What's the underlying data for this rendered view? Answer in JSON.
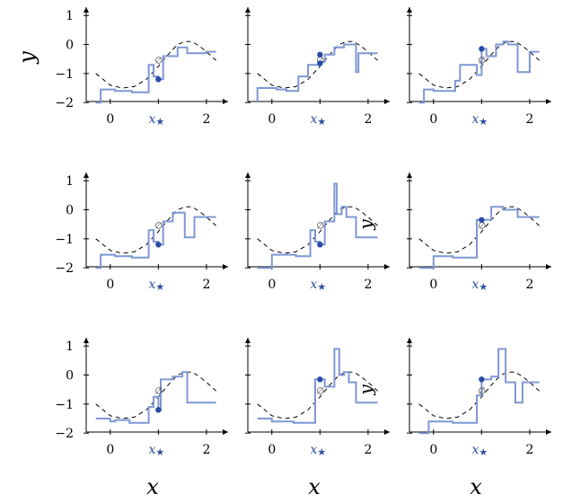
{
  "colors": {
    "step": "#7f97d4",
    "dot": "#2a4aa8",
    "curve": "#000000",
    "xstar": "#2e4ea0"
  },
  "labels": {
    "x": "x",
    "y": "y",
    "xstar": "x",
    "xstar_sub": "★",
    "emptyset": "∅"
  },
  "chart_data": [
    {
      "type": "line",
      "row": 0,
      "col": 0,
      "xlim": [
        -0.5,
        2.3
      ],
      "ylim": [
        -2.15,
        1.1
      ],
      "xticks": [
        "0",
        "2"
      ],
      "yticks": [
        "1",
        "0",
        "−1",
        "−2"
      ],
      "xstar": 1.0,
      "series": [
        {
          "style": "dashed",
          "x": [
            -0.3,
            0.0,
            0.25,
            0.5,
            0.75,
            1.0,
            1.2,
            1.4,
            1.55,
            1.7,
            1.85,
            2.0,
            2.2
          ],
          "y": [
            -1.0,
            -1.4,
            -1.5,
            -1.45,
            -1.2,
            -0.75,
            -0.35,
            0.0,
            0.1,
            0.1,
            -0.05,
            -0.25,
            -0.55
          ]
        },
        {
          "style": "step",
          "x": [
            -0.3,
            -0.2,
            -0.2,
            0.1,
            0.1,
            0.45,
            0.45,
            0.8,
            0.8,
            0.9,
            0.9,
            1.0,
            1.0,
            1.1,
            1.1,
            1.4,
            1.4,
            1.6,
            1.6,
            2.0,
            2.0,
            2.2
          ],
          "y": [
            -2.0,
            -2.0,
            -1.55,
            -1.55,
            -1.6,
            -1.6,
            -1.65,
            -1.65,
            -0.7,
            -0.7,
            -1.1,
            -1.1,
            -1.2,
            -1.2,
            -0.4,
            -0.4,
            -0.1,
            -0.1,
            -0.3,
            -0.3,
            -0.25,
            -0.25
          ]
        }
      ],
      "point": {
        "x": 1.0,
        "y": -1.2
      },
      "emptyset": {
        "x": 1.0,
        "y": -0.55
      }
    },
    {
      "type": "line",
      "row": 0,
      "col": 1,
      "xlim": [
        -0.5,
        2.3
      ],
      "ylim": [
        -2.15,
        1.1
      ],
      "xticks": [
        "0",
        "2"
      ],
      "yticks": [],
      "xstar": 1.0,
      "series": [
        {
          "style": "dashed",
          "x": [
            -0.3,
            0.0,
            0.25,
            0.5,
            0.75,
            1.0,
            1.2,
            1.4,
            1.55,
            1.7,
            1.85,
            2.0,
            2.2
          ],
          "y": [
            -1.0,
            -1.4,
            -1.5,
            -1.45,
            -1.2,
            -0.75,
            -0.35,
            0.0,
            0.1,
            0.1,
            -0.05,
            -0.25,
            -0.55
          ]
        },
        {
          "style": "step",
          "x": [
            -0.3,
            -0.3,
            0.1,
            0.1,
            0.3,
            0.3,
            0.55,
            0.55,
            0.75,
            0.75,
            1.0,
            1.0,
            1.1,
            1.1,
            1.3,
            1.3,
            1.5,
            1.5,
            1.75,
            1.75,
            1.8,
            1.8,
            2.2
          ],
          "y": [
            -2.0,
            -1.5,
            -1.5,
            -1.55,
            -1.55,
            -1.6,
            -1.6,
            -1.1,
            -1.1,
            -0.7,
            -0.7,
            -0.6,
            -0.6,
            -0.35,
            -0.35,
            -0.1,
            -0.1,
            0.0,
            0.0,
            -0.95,
            -0.95,
            -0.3,
            -0.3
          ]
        }
      ],
      "point": {
        "x": 1.0,
        "y": -0.35
      },
      "point2": {
        "x": 1.0,
        "y": -0.65
      },
      "emptyset": {
        "x": 1.0,
        "y": -0.55
      }
    },
    {
      "type": "line",
      "row": 0,
      "col": 2,
      "xlim": [
        -0.5,
        2.3
      ],
      "ylim": [
        -2.15,
        1.1
      ],
      "xticks": [
        "0",
        "2"
      ],
      "yticks": [],
      "xstar": 1.0,
      "series": [
        {
          "style": "dashed",
          "x": [
            -0.3,
            0.0,
            0.25,
            0.5,
            0.75,
            1.0,
            1.2,
            1.4,
            1.55,
            1.7,
            1.85,
            2.0,
            2.2
          ],
          "y": [
            -1.0,
            -1.4,
            -1.5,
            -1.45,
            -1.2,
            -0.75,
            -0.35,
            0.0,
            0.1,
            0.1,
            -0.05,
            -0.25,
            -0.55
          ]
        },
        {
          "style": "step",
          "x": [
            -0.3,
            -0.2,
            -0.2,
            0.0,
            0.0,
            0.45,
            0.45,
            0.55,
            0.55,
            0.9,
            0.9,
            1.0,
            1.0,
            1.1,
            1.1,
            1.3,
            1.3,
            1.45,
            1.45,
            1.55,
            1.55,
            1.75,
            1.75,
            2.0,
            2.0,
            2.2
          ],
          "y": [
            -2.0,
            -2.0,
            -1.55,
            -1.55,
            -1.6,
            -1.6,
            -1.25,
            -1.25,
            -0.7,
            -0.7,
            -1.05,
            -1.05,
            -0.15,
            -0.15,
            -0.4,
            -0.4,
            0.0,
            0.0,
            0.1,
            0.1,
            0.0,
            0.0,
            -0.95,
            -0.95,
            -0.25,
            -0.25
          ]
        }
      ],
      "point": {
        "x": 1.0,
        "y": -0.15
      },
      "emptyset": {
        "x": 1.0,
        "y": -0.55
      }
    },
    {
      "type": "line",
      "row": 1,
      "col": 0,
      "xlim": [
        -0.5,
        2.3
      ],
      "ylim": [
        -2.15,
        1.1
      ],
      "xticks": [
        "0",
        "2"
      ],
      "yticks": [
        "1",
        "0",
        "−1",
        "−2"
      ],
      "xstar": 1.0,
      "series": [
        {
          "style": "dashed",
          "x": [
            -0.3,
            0.0,
            0.25,
            0.5,
            0.75,
            1.0,
            1.2,
            1.4,
            1.55,
            1.7,
            1.85,
            2.0,
            2.2
          ],
          "y": [
            -1.0,
            -1.4,
            -1.5,
            -1.45,
            -1.2,
            -0.75,
            -0.35,
            0.0,
            0.1,
            0.1,
            -0.05,
            -0.25,
            -0.55
          ]
        },
        {
          "style": "step",
          "x": [
            -0.3,
            -0.2,
            -0.2,
            0.1,
            0.1,
            0.45,
            0.45,
            0.8,
            0.8,
            0.9,
            0.9,
            1.0,
            1.0,
            1.1,
            1.1,
            1.3,
            1.3,
            1.55,
            1.55,
            1.75,
            1.75,
            2.0,
            2.0,
            2.2
          ],
          "y": [
            -2.0,
            -2.0,
            -1.55,
            -1.55,
            -1.6,
            -1.6,
            -1.65,
            -1.65,
            -0.7,
            -0.7,
            -1.1,
            -1.1,
            -1.2,
            -1.2,
            -0.4,
            -0.4,
            -0.1,
            -0.1,
            -0.95,
            -0.95,
            -0.25,
            -0.25,
            -0.25,
            -0.25
          ]
        }
      ],
      "point": {
        "x": 1.0,
        "y": -1.2
      },
      "emptyset": {
        "x": 1.0,
        "y": -0.55
      }
    },
    {
      "type": "line",
      "row": 1,
      "col": 1,
      "xlim": [
        -0.5,
        2.3
      ],
      "ylim": [
        -2.15,
        1.1
      ],
      "xticks": [
        "0",
        "2"
      ],
      "yticks": [],
      "xstar": 1.0,
      "annotation": "y",
      "series": [
        {
          "style": "dashed",
          "x": [
            -0.3,
            0.0,
            0.25,
            0.5,
            0.75,
            1.0,
            1.2,
            1.4,
            1.55,
            1.7,
            1.85,
            2.0,
            2.2
          ],
          "y": [
            -1.0,
            -1.4,
            -1.5,
            -1.45,
            -1.2,
            -0.75,
            -0.35,
            0.0,
            0.1,
            0.1,
            -0.05,
            -0.25,
            -0.55
          ]
        },
        {
          "style": "step",
          "x": [
            -0.3,
            -0.3,
            0.0,
            0.0,
            0.3,
            0.3,
            0.5,
            0.5,
            0.8,
            0.8,
            0.9,
            0.9,
            1.0,
            1.0,
            1.1,
            1.1,
            1.3,
            1.3,
            1.35,
            1.35,
            1.45,
            1.45,
            1.55,
            1.55,
            1.75,
            1.75,
            2.2
          ],
          "y": [
            -2.0,
            -2.0,
            -2.0,
            -1.55,
            -1.55,
            -1.55,
            -1.55,
            -1.6,
            -1.6,
            -0.7,
            -0.7,
            -1.1,
            -1.1,
            -1.2,
            -1.2,
            -0.4,
            -0.4,
            0.9,
            0.9,
            -0.15,
            -0.15,
            0.1,
            0.1,
            -0.25,
            -0.25,
            -0.95,
            -0.95
          ]
        }
      ],
      "point": {
        "x": 1.0,
        "y": -1.2
      },
      "emptyset": {
        "x": 1.0,
        "y": -0.55
      }
    },
    {
      "type": "line",
      "row": 1,
      "col": 2,
      "xlim": [
        -0.5,
        2.3
      ],
      "ylim": [
        -2.15,
        1.1
      ],
      "xticks": [
        "0",
        "2"
      ],
      "yticks": [],
      "xstar": 1.0,
      "series": [
        {
          "style": "dashed",
          "x": [
            -0.3,
            0.0,
            0.25,
            0.5,
            0.75,
            1.0,
            1.2,
            1.4,
            1.55,
            1.7,
            1.85,
            2.0,
            2.2
          ],
          "y": [
            -1.0,
            -1.4,
            -1.5,
            -1.45,
            -1.2,
            -0.75,
            -0.35,
            0.0,
            0.1,
            0.1,
            -0.05,
            -0.25,
            -0.55
          ]
        },
        {
          "style": "step",
          "x": [
            -0.3,
            -0.0,
            -0.0,
            0.4,
            0.4,
            0.9,
            0.9,
            1.0,
            1.0,
            1.2,
            1.2,
            1.45,
            1.45,
            1.75,
            1.75,
            2.2
          ],
          "y": [
            -2.0,
            -2.0,
            -1.6,
            -1.6,
            -1.65,
            -1.65,
            -0.35,
            -0.35,
            -0.35,
            -0.35,
            0.1,
            0.1,
            0.0,
            0.0,
            -0.25,
            -0.25
          ]
        }
      ],
      "point": {
        "x": 1.0,
        "y": -0.35
      },
      "emptyset": {
        "x": 1.0,
        "y": -0.55
      }
    },
    {
      "type": "line",
      "row": 2,
      "col": 0,
      "xlim": [
        -0.5,
        2.3
      ],
      "ylim": [
        -2.15,
        1.1
      ],
      "xticks": [
        "0",
        "2"
      ],
      "yticks": [
        "1",
        "0",
        "−1",
        "−2"
      ],
      "xstar": 1.0,
      "series": [
        {
          "style": "dashed",
          "x": [
            -0.3,
            0.0,
            0.25,
            0.5,
            0.75,
            1.0,
            1.2,
            1.4,
            1.55,
            1.7,
            1.85,
            2.0,
            2.2
          ],
          "y": [
            -1.0,
            -1.4,
            -1.5,
            -1.45,
            -1.2,
            -0.75,
            -0.35,
            0.0,
            0.1,
            0.1,
            -0.05,
            -0.25,
            -0.55
          ]
        },
        {
          "style": "step",
          "x": [
            -0.3,
            0.0,
            0.0,
            0.1,
            0.1,
            0.4,
            0.4,
            0.8,
            0.8,
            0.9,
            0.9,
            1.0,
            1.0,
            1.05,
            1.05,
            1.3,
            1.3,
            1.5,
            1.5,
            1.6,
            1.6,
            2.2
          ],
          "y": [
            -1.5,
            -1.5,
            -1.6,
            -1.6,
            -1.55,
            -1.55,
            -1.65,
            -1.65,
            -1.1,
            -1.1,
            -0.75,
            -0.75,
            -1.2,
            -1.2,
            -0.15,
            -0.15,
            -0.05,
            -0.05,
            0.1,
            0.1,
            -0.95,
            -0.95
          ]
        }
      ],
      "point": {
        "x": 1.0,
        "y": -1.2
      },
      "emptyset": {
        "x": 1.0,
        "y": -0.55
      }
    },
    {
      "type": "line",
      "row": 2,
      "col": 1,
      "xlim": [
        -0.5,
        2.3
      ],
      "ylim": [
        -2.15,
        1.1
      ],
      "xticks": [
        "0",
        "2"
      ],
      "yticks": [],
      "xstar": 1.0,
      "annotation": "y",
      "series": [
        {
          "style": "dashed",
          "x": [
            -0.3,
            0.0,
            0.25,
            0.5,
            0.75,
            1.0,
            1.2,
            1.4,
            1.55,
            1.7,
            1.85,
            2.0,
            2.2
          ],
          "y": [
            -1.0,
            -1.4,
            -1.5,
            -1.45,
            -1.2,
            -0.75,
            -0.35,
            0.0,
            0.1,
            0.1,
            -0.05,
            -0.25,
            -0.55
          ]
        },
        {
          "style": "step",
          "x": [
            -0.3,
            0.0,
            0.0,
            0.45,
            0.45,
            0.9,
            0.9,
            1.0,
            1.0,
            1.1,
            1.1,
            1.3,
            1.3,
            1.4,
            1.4,
            1.5,
            1.5,
            1.6,
            1.6,
            1.75,
            1.75,
            2.2
          ],
          "y": [
            -1.5,
            -1.5,
            -1.6,
            -1.6,
            -1.65,
            -1.65,
            -0.15,
            -0.15,
            -0.15,
            -0.15,
            -0.4,
            -0.4,
            0.9,
            0.9,
            0.0,
            0.0,
            0.1,
            0.1,
            -0.25,
            -0.25,
            -0.95,
            -0.95
          ]
        }
      ],
      "point": {
        "x": 1.0,
        "y": -0.15
      },
      "emptyset": {
        "x": 1.0,
        "y": -0.55
      }
    },
    {
      "type": "line",
      "row": 2,
      "col": 2,
      "xlim": [
        -0.5,
        2.3
      ],
      "ylim": [
        -2.15,
        1.1
      ],
      "xticks": [
        "0",
        "2"
      ],
      "yticks": [],
      "xstar": 1.0,
      "series": [
        {
          "style": "dashed",
          "x": [
            -0.3,
            0.0,
            0.25,
            0.5,
            0.75,
            1.0,
            1.2,
            1.4,
            1.55,
            1.7,
            1.85,
            2.0,
            2.2
          ],
          "y": [
            -1.0,
            -1.4,
            -1.5,
            -1.45,
            -1.2,
            -0.75,
            -0.35,
            0.0,
            0.1,
            0.1,
            -0.05,
            -0.25,
            -0.55
          ]
        },
        {
          "style": "step",
          "x": [
            -0.3,
            -0.1,
            -0.1,
            0.4,
            0.4,
            0.9,
            0.9,
            1.0,
            1.0,
            1.2,
            1.2,
            1.35,
            1.35,
            1.5,
            1.5,
            1.7,
            1.7,
            1.85,
            1.85,
            2.2
          ],
          "y": [
            -2.0,
            -2.0,
            -1.6,
            -1.6,
            -1.65,
            -1.65,
            -0.7,
            -0.7,
            -0.15,
            -0.15,
            -0.05,
            -0.05,
            0.9,
            0.9,
            -0.25,
            -0.25,
            -0.95,
            -0.95,
            -0.25,
            -0.25
          ]
        }
      ],
      "point": {
        "x": 1.0,
        "y": -0.15
      },
      "emptyset": {
        "x": 1.0,
        "y": -0.55
      }
    }
  ]
}
